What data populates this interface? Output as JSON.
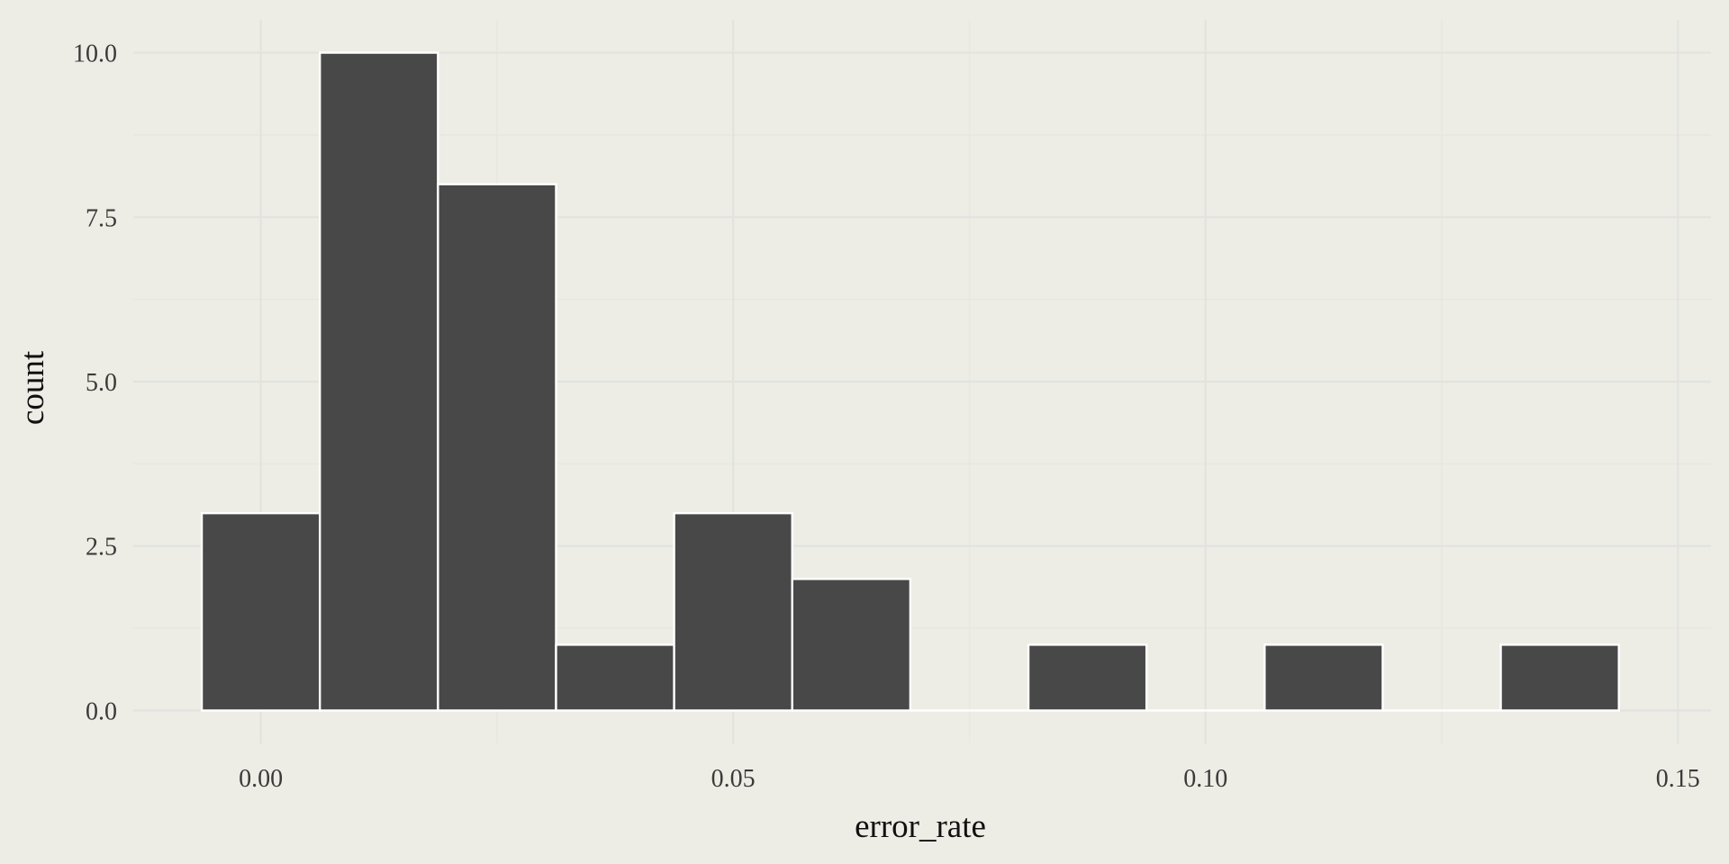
{
  "chart_data": {
    "type": "bar",
    "subtype": "histogram",
    "xlabel": "error_rate",
    "ylabel": "count",
    "bins": [
      {
        "x_start": -0.00625,
        "x_end": 0.00625,
        "count": 3
      },
      {
        "x_start": 0.00625,
        "x_end": 0.01875,
        "count": 10
      },
      {
        "x_start": 0.01875,
        "x_end": 0.03125,
        "count": 8
      },
      {
        "x_start": 0.03125,
        "x_end": 0.04375,
        "count": 1
      },
      {
        "x_start": 0.04375,
        "x_end": 0.05625,
        "count": 3
      },
      {
        "x_start": 0.05625,
        "x_end": 0.06875,
        "count": 2
      },
      {
        "x_start": 0.06875,
        "x_end": 0.08125,
        "count": 0
      },
      {
        "x_start": 0.08125,
        "x_end": 0.09375,
        "count": 1
      },
      {
        "x_start": 0.09375,
        "x_end": 0.10625,
        "count": 0
      },
      {
        "x_start": 0.10625,
        "x_end": 0.11875,
        "count": 1
      },
      {
        "x_start": 0.11875,
        "x_end": 0.13125,
        "count": 0
      },
      {
        "x_start": 0.13125,
        "x_end": 0.14375,
        "count": 1
      }
    ],
    "xlim": [
      -0.0135,
      0.1535
    ],
    "ylim": [
      -0.5,
      10.5
    ],
    "x_ticks": [
      0.0,
      0.05,
      0.1,
      0.15
    ],
    "x_tick_labels": [
      "0.00",
      "0.05",
      "0.10",
      "0.15"
    ],
    "x_minor_ticks": [
      0.025,
      0.075,
      0.125
    ],
    "y_ticks": [
      0,
      2.5,
      5,
      7.5,
      10
    ],
    "y_tick_labels": [
      "0.0",
      "2.5",
      "5.0",
      "7.5",
      "10.0"
    ],
    "y_minor_ticks": [
      1.25,
      3.75,
      6.25,
      8.75
    ],
    "grid": true,
    "legend": "none",
    "colors": {
      "background": "#edede5",
      "bar_fill": "#484848",
      "bar_outline": "#ffffff",
      "grid": "#e2e3e0"
    }
  }
}
